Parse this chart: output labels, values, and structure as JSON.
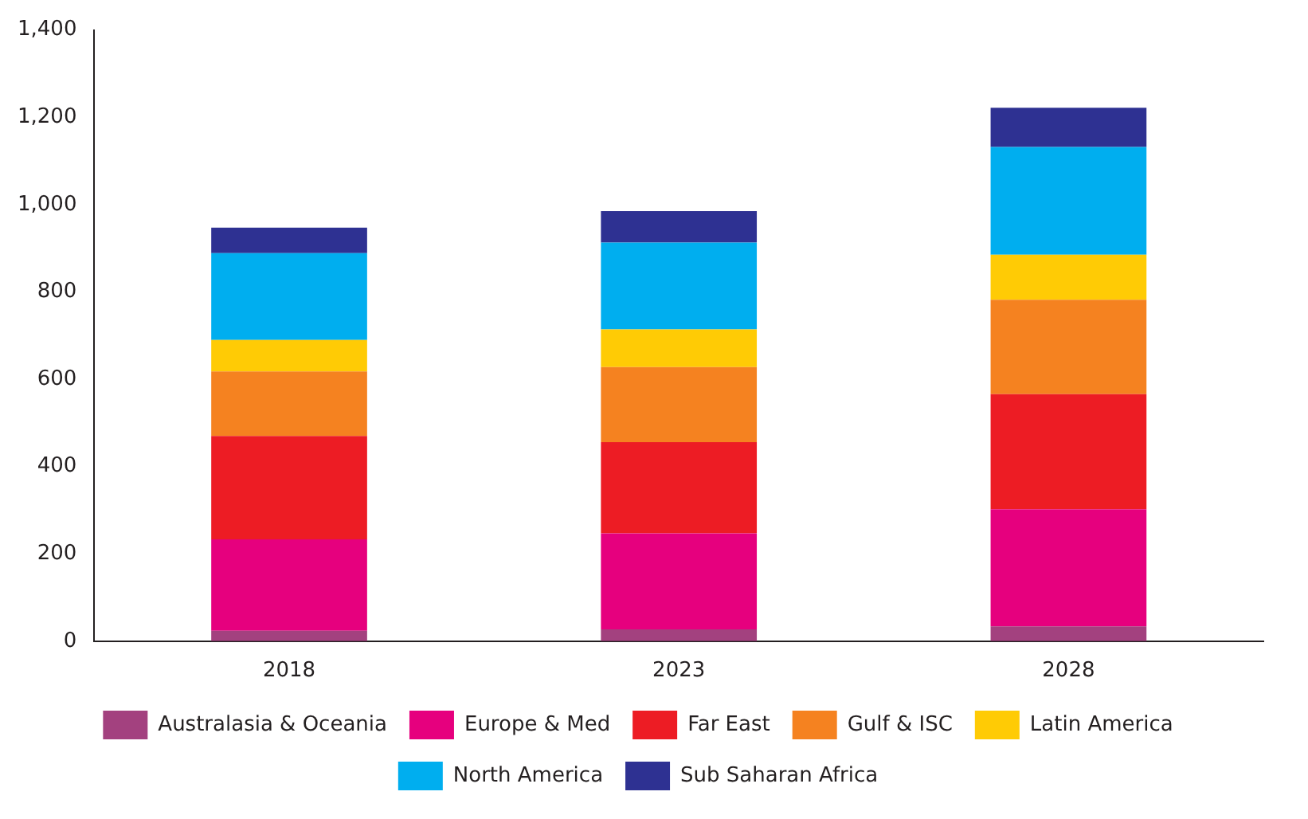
{
  "chart_data": {
    "type": "bar",
    "stacked": true,
    "categories": [
      "2018",
      "2023",
      "2028"
    ],
    "series": [
      {
        "name": "Australasia & Oceania",
        "color": "#a3417f",
        "values": [
          24,
          27,
          34
        ]
      },
      {
        "name": "Europe & Med",
        "color": "#e6007e",
        "values": [
          209,
          220,
          268
        ]
      },
      {
        "name": "Far East",
        "color": "#ed1c24",
        "values": [
          237,
          209,
          264
        ]
      },
      {
        "name": "Gulf & ISC",
        "color": "#f58220",
        "values": [
          148,
          172,
          216
        ]
      },
      {
        "name": "Latin America",
        "color": "#ffcb05",
        "values": [
          72,
          86,
          103
        ]
      },
      {
        "name": "North America",
        "color": "#00aeef",
        "values": [
          199,
          199,
          247
        ]
      },
      {
        "name": "Sub Saharan Africa",
        "color": "#2e3192",
        "values": [
          58,
          72,
          90
        ]
      }
    ],
    "ylim": [
      0,
      1400
    ],
    "yticks": [
      0,
      200,
      400,
      600,
      800,
      {
        "value": 1000,
        "label": "1,000"
      },
      {
        "value": 1200,
        "label": "1,200"
      },
      {
        "value": 1400,
        "label": "1,400"
      }
    ],
    "grid": false,
    "legend": "bottom"
  }
}
